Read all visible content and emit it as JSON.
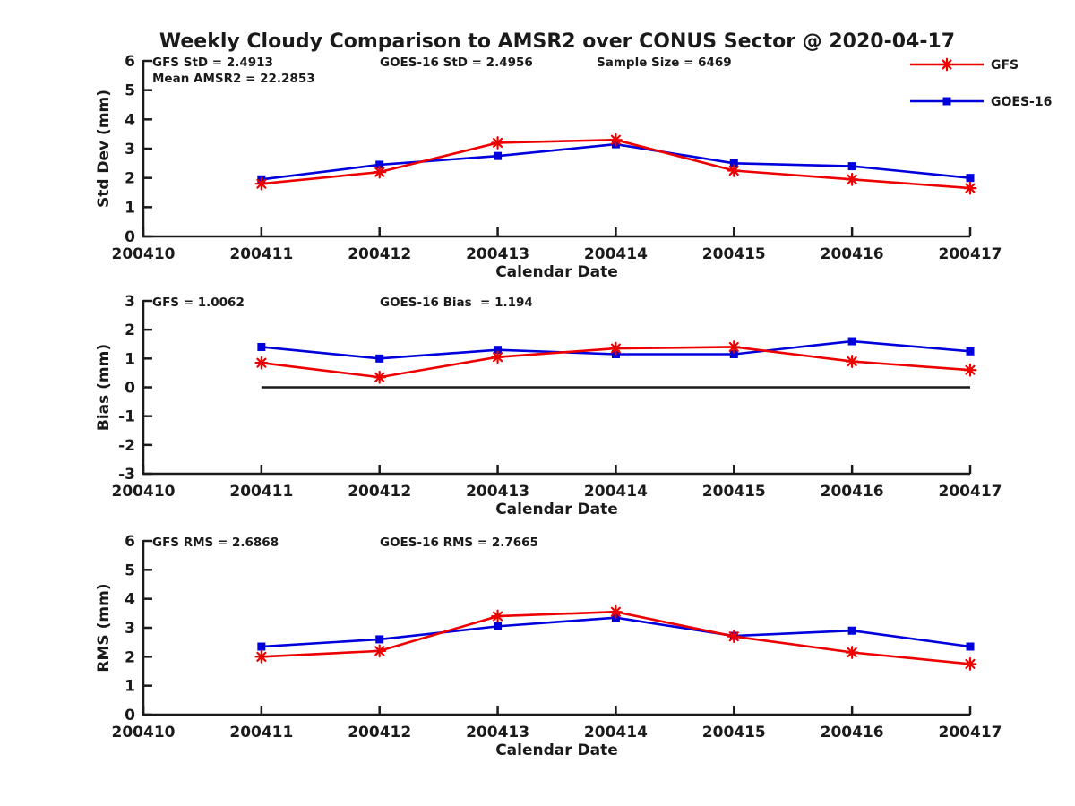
{
  "title": "Weekly Cloudy Comparison to AMSR2 over CONUS Sector @ 2020-04-17",
  "colors": {
    "gfs": "#ee0000",
    "goes16": "#0000dd",
    "axis": "#1a1a1a"
  },
  "legend": {
    "items": [
      {
        "label": "GFS",
        "color": "#ee0000",
        "marker": "asterisk"
      },
      {
        "label": "GOES-16",
        "color": "#0000dd",
        "marker": "square"
      }
    ]
  },
  "chart_data": [
    {
      "type": "line",
      "id": "std-dev",
      "ylabel": "Std Dev (mm)",
      "xlabel": "Calendar Date",
      "ylim": [
        0,
        6
      ],
      "yticks": [
        0,
        1,
        2,
        3,
        4,
        5,
        6
      ],
      "xticklabels": [
        "200410",
        "200411",
        "200412",
        "200413",
        "200414",
        "200415",
        "200416",
        "200417"
      ],
      "x": [
        "200411",
        "200412",
        "200413",
        "200414",
        "200415",
        "200416",
        "200417"
      ],
      "grid": false,
      "zero_line": false,
      "series": [
        {
          "name": "GOES-16",
          "color": "#0000dd",
          "marker": "square",
          "values": [
            1.95,
            2.45,
            2.75,
            3.15,
            2.5,
            2.4,
            2.0
          ]
        },
        {
          "name": "GFS",
          "color": "#ee0000",
          "marker": "asterisk",
          "values": [
            1.8,
            2.2,
            3.2,
            3.3,
            2.25,
            1.95,
            1.65
          ]
        }
      ],
      "annotations": [
        {
          "text": "GFS StD = 2.4913",
          "col": 0,
          "row": 0
        },
        {
          "text": "Mean AMSR2 = 22.2853",
          "col": 0,
          "row": 1
        },
        {
          "text": "GOES-16 StD = 2.4956",
          "col": 1,
          "row": 0
        },
        {
          "text": "Sample Size = 6469",
          "col": 2,
          "row": 0
        }
      ]
    },
    {
      "type": "line",
      "id": "bias",
      "ylabel": "Bias (mm)",
      "xlabel": "Calendar Date",
      "ylim": [
        -3,
        3
      ],
      "yticks": [
        -3,
        -2,
        -1,
        0,
        1,
        2,
        3
      ],
      "xticklabels": [
        "200410",
        "200411",
        "200412",
        "200413",
        "200414",
        "200415",
        "200416",
        "200417"
      ],
      "x": [
        "200411",
        "200412",
        "200413",
        "200414",
        "200415",
        "200416",
        "200417"
      ],
      "grid": false,
      "zero_line": true,
      "series": [
        {
          "name": "GOES-16",
          "color": "#0000dd",
          "marker": "square",
          "values": [
            1.4,
            1.0,
            1.3,
            1.15,
            1.15,
            1.6,
            1.25
          ]
        },
        {
          "name": "GFS",
          "color": "#ee0000",
          "marker": "asterisk",
          "values": [
            0.85,
            0.35,
            1.05,
            1.35,
            1.4,
            0.9,
            0.6
          ]
        }
      ],
      "annotations": [
        {
          "text": "GFS = 1.0062",
          "col": 0,
          "row": 0
        },
        {
          "text": "GOES-16 Bias  = 1.194",
          "col": 1,
          "row": 0
        }
      ]
    },
    {
      "type": "line",
      "id": "rms",
      "ylabel": "RMS (mm)",
      "xlabel": "Calendar Date",
      "ylim": [
        0,
        6
      ],
      "yticks": [
        0,
        1,
        2,
        3,
        4,
        5,
        6
      ],
      "xticklabels": [
        "200410",
        "200411",
        "200412",
        "200413",
        "200414",
        "200415",
        "200416",
        "200417"
      ],
      "x": [
        "200411",
        "200412",
        "200413",
        "200414",
        "200415",
        "200416",
        "200417"
      ],
      "grid": false,
      "zero_line": false,
      "series": [
        {
          "name": "GOES-16",
          "color": "#0000dd",
          "marker": "square",
          "values": [
            2.35,
            2.6,
            3.05,
            3.35,
            2.72,
            2.9,
            2.35
          ]
        },
        {
          "name": "GFS",
          "color": "#ee0000",
          "marker": "asterisk",
          "values": [
            2.0,
            2.2,
            3.4,
            3.55,
            2.7,
            2.15,
            1.75
          ]
        }
      ],
      "annotations": [
        {
          "text": "GFS RMS = 2.6868",
          "col": 0,
          "row": 0
        },
        {
          "text": "GOES-16 RMS = 2.7665",
          "col": 1,
          "row": 0
        }
      ]
    }
  ]
}
